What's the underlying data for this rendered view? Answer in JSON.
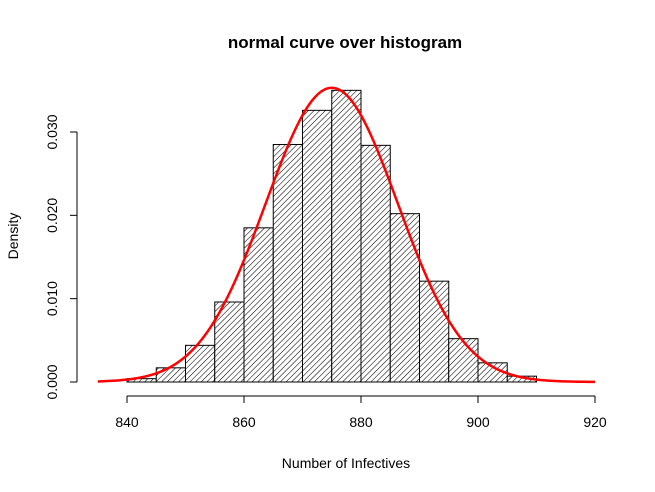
{
  "chart_data": {
    "type": "bar",
    "title": "normal curve over histogram",
    "xlabel": "Number of Infectives",
    "ylabel": "Density",
    "xlim": [
      835,
      920
    ],
    "ylim": [
      0,
      0.035
    ],
    "x_ticks": [
      840,
      860,
      880,
      900,
      920
    ],
    "y_ticks": [
      "0.000",
      "0.010",
      "0.020",
      "0.030"
    ],
    "bin_edges": [
      840,
      845,
      850,
      855,
      860,
      865,
      870,
      875,
      880,
      885,
      890,
      895,
      900,
      905,
      910
    ],
    "values": [
      0.0004,
      0.0017,
      0.0044,
      0.0096,
      0.0185,
      0.0285,
      0.0326,
      0.035,
      0.0284,
      0.0202,
      0.0121,
      0.0052,
      0.0023,
      0.0007
    ],
    "fill_pattern": "diagonal hatch",
    "curve": {
      "type": "normal density",
      "mean": 875,
      "sd": 11.3,
      "x_range": [
        835,
        920
      ],
      "color": "#ff0000"
    },
    "grid": false,
    "legend": "none"
  }
}
